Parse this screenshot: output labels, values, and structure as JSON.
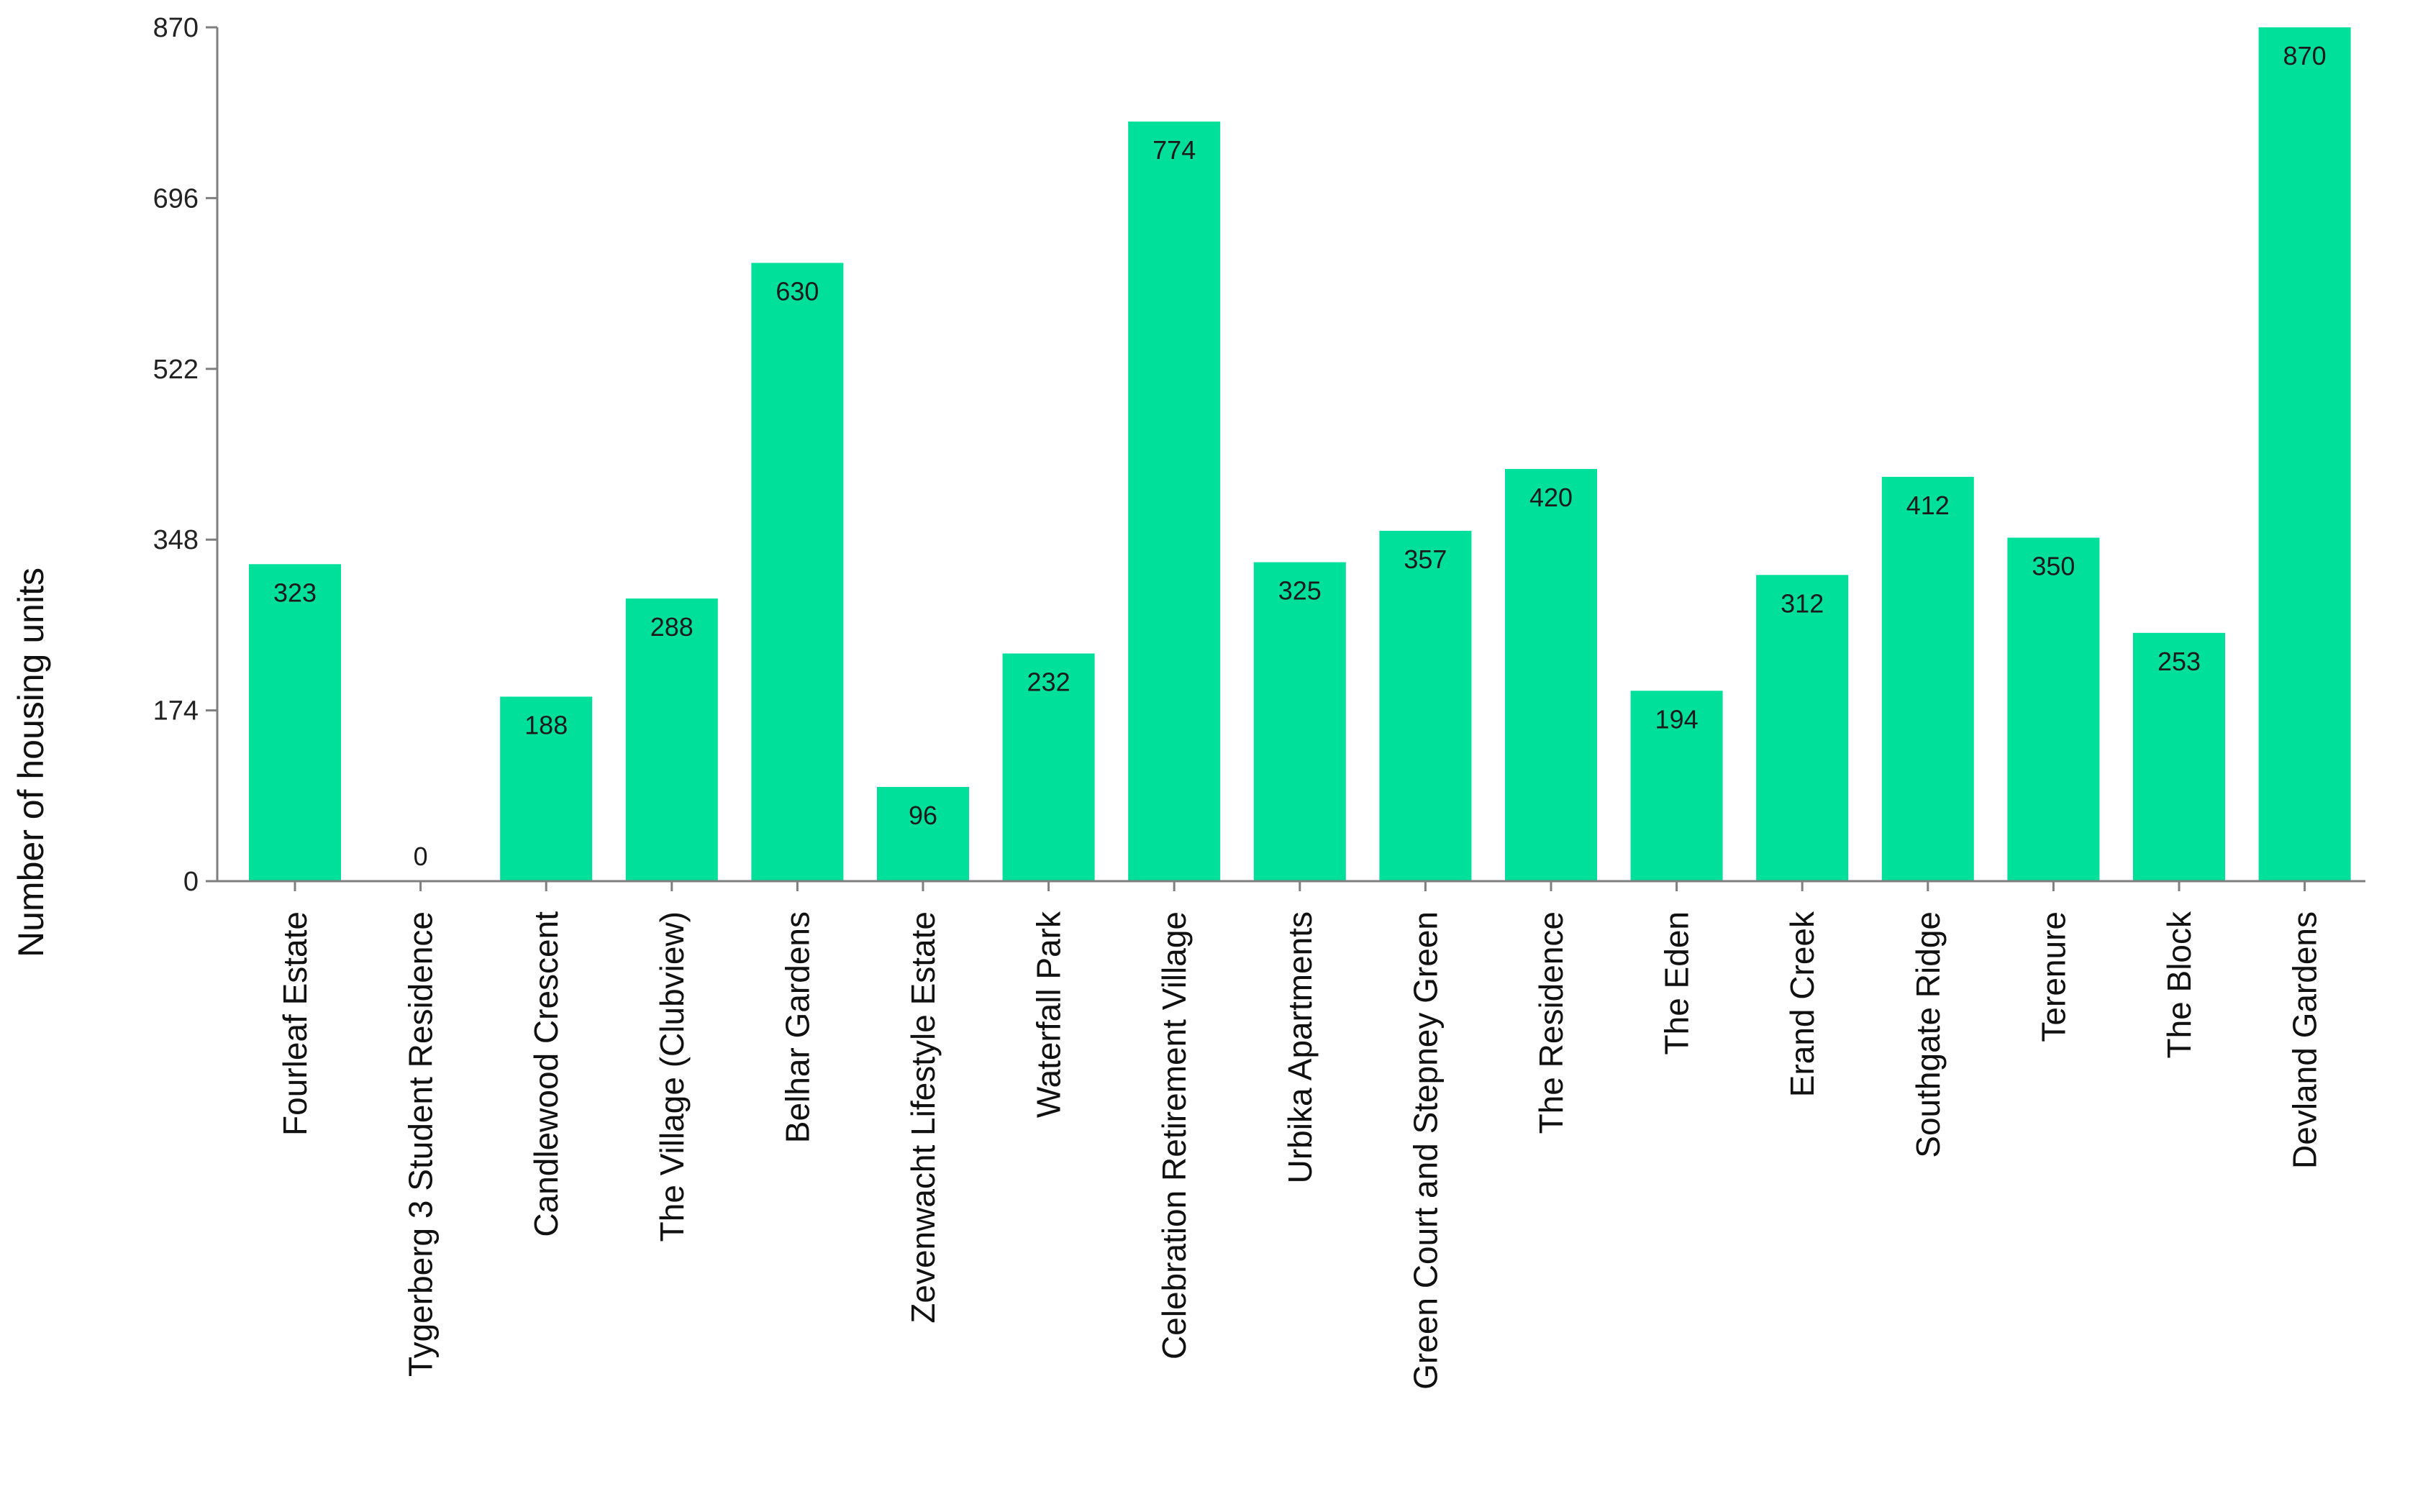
{
  "chart_data": {
    "type": "bar",
    "title": "",
    "xlabel": "",
    "ylabel": "Number of housing units",
    "ylim": [
      0,
      870
    ],
    "yticks": [
      "0",
      "174",
      "348",
      "522",
      "696",
      "870"
    ],
    "grid": false,
    "legend": "none",
    "bar_color": "#00E09A",
    "categories": [
      "Fourleaf Estate",
      "Tygerberg 3 Student Residence",
      "Candlewood Crescent",
      "The Village (Clubview)",
      "Belhar Gardens",
      "Zevenwacht Lifestyle Estate",
      "Waterfall Park",
      "Celebration Retirement Village",
      "Urbika Apartments",
      "Green Court and Stepney Green",
      "The Residence",
      "The Eden",
      "Erand Creek",
      "Southgate Ridge",
      "Terenure",
      "The Block",
      "Devland Gardens"
    ],
    "values": [
      323,
      0,
      188,
      288,
      630,
      96,
      232,
      774,
      325,
      357,
      420,
      194,
      312,
      412,
      350,
      253,
      870
    ],
    "data_labels": [
      "323",
      "0",
      "188",
      "288",
      "630",
      "96",
      "232",
      "774",
      "325",
      "357",
      "420",
      "194",
      "312",
      "412",
      "350",
      "253",
      "870"
    ]
  }
}
